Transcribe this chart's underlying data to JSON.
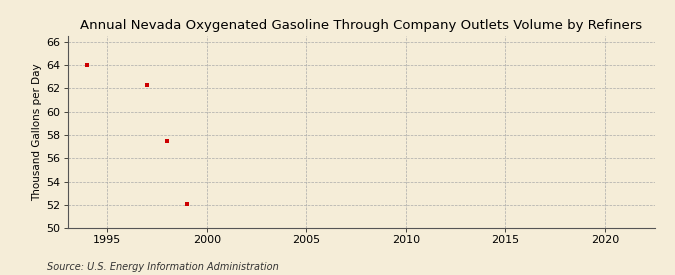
{
  "title": "Annual Nevada Oxygenated Gasoline Through Company Outlets Volume by Refiners",
  "ylabel": "Thousand Gallons per Day",
  "source": "Source: U.S. Energy Information Administration",
  "x_data": [
    1994,
    1997,
    1998,
    1999
  ],
  "y_data": [
    64.0,
    62.3,
    57.5,
    52.1
  ],
  "xlim": [
    1993,
    2022.5
  ],
  "ylim": [
    50,
    66.5
  ],
  "yticks": [
    50,
    52,
    54,
    56,
    58,
    60,
    62,
    64,
    66
  ],
  "xticks": [
    1995,
    2000,
    2005,
    2010,
    2015,
    2020
  ],
  "marker_color": "#cc0000",
  "marker": "s",
  "marker_size": 3,
  "bg_color": "#f5edd8",
  "grid_color": "#aaaaaa",
  "title_fontsize": 9.5,
  "label_fontsize": 7.5,
  "tick_fontsize": 8,
  "source_fontsize": 7
}
